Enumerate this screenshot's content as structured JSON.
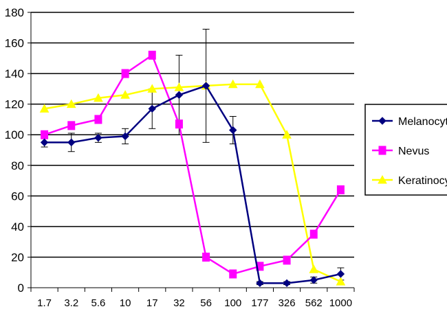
{
  "chart_data": {
    "type": "line",
    "categories": [
      "1.7",
      "3.2",
      "5.6",
      "10",
      "17",
      "32",
      "56",
      "100",
      "177",
      "326",
      "562",
      "1000"
    ],
    "ylim": [
      0,
      180
    ],
    "yticks": [
      "0",
      "20",
      "40",
      "60",
      "80",
      "100",
      "120",
      "140",
      "160",
      "180"
    ],
    "grid": true,
    "legend_position": "right",
    "series": [
      {
        "name": "Melanocytes",
        "color": "#000080",
        "marker": "diamond",
        "values": [
          95,
          95,
          98,
          99,
          117,
          126,
          132,
          103,
          3,
          3,
          5,
          9
        ],
        "errors": [
          3,
          6,
          3,
          5,
          13,
          26,
          37,
          9,
          1,
          1,
          2,
          4
        ]
      },
      {
        "name": "Nevus",
        "color": "#ff00ff",
        "marker": "square",
        "values": [
          100,
          106,
          110,
          140,
          152,
          107,
          20,
          9,
          14,
          18,
          35,
          64
        ],
        "errors": []
      },
      {
        "name": "Keratinocytes",
        "color": "#ffff00",
        "marker": "triangle",
        "values": [
          117,
          120,
          124,
          126,
          130,
          131,
          132,
          133,
          133,
          100,
          12,
          4
        ],
        "errors": []
      }
    ]
  }
}
